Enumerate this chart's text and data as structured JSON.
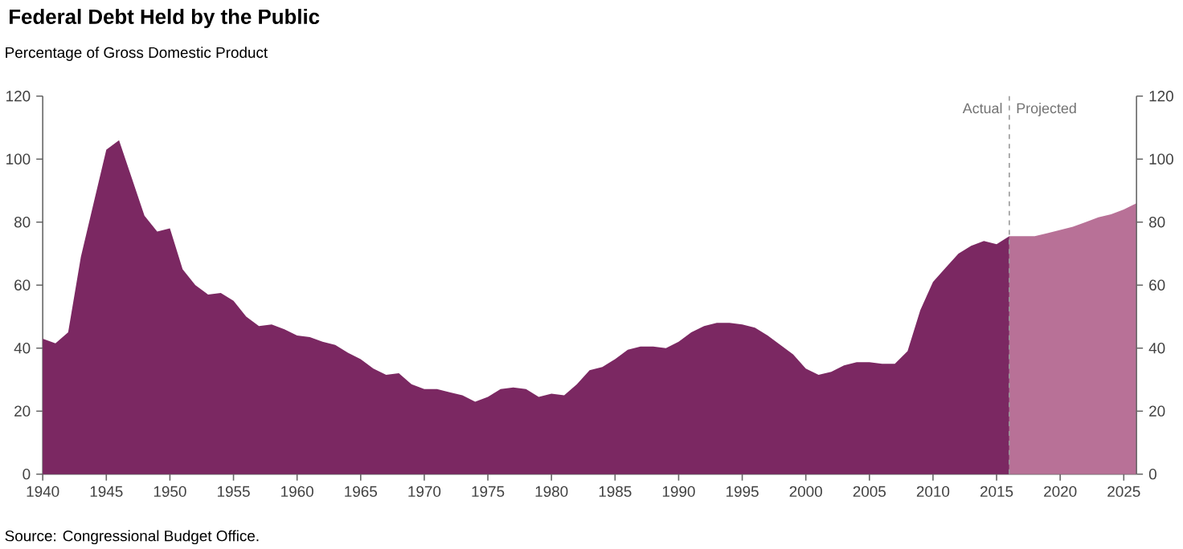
{
  "chart_data": {
    "type": "area",
    "title": "Federal Debt Held by the Public",
    "ylabel": "Percentage of Gross Domestic Product",
    "series": [
      {
        "color": "#7b2862",
        "x": [
          1940,
          1941,
          1942,
          1943,
          1944,
          1945,
          1946,
          1947,
          1948,
          1949,
          1950,
          1951,
          1952,
          1953,
          1954,
          1955,
          1956,
          1957,
          1958,
          1959,
          1960,
          1961,
          1962,
          1963,
          1964,
          1965,
          1966,
          1967,
          1968,
          1969,
          1970,
          1971,
          1972,
          1973,
          1974,
          1975,
          1976,
          1977,
          1978,
          1979,
          1980,
          1981,
          1982,
          1983,
          1984,
          1985,
          1986,
          1987,
          1988,
          1989,
          1990,
          1991,
          1992,
          1993,
          1994,
          1995,
          1996,
          1997,
          1998,
          1999,
          2000,
          2001,
          2002,
          2003,
          2004,
          2005,
          2006,
          2007,
          2008,
          2009,
          2010,
          2011,
          2012,
          2013,
          2014,
          2015,
          2016
        ],
        "values": [
          43,
          41.5,
          45,
          69,
          86,
          103,
          106,
          94,
          82,
          77,
          78,
          65,
          60,
          57,
          57.5,
          55,
          50,
          47,
          47.5,
          46,
          44,
          43.5,
          42,
          41,
          38.5,
          36.5,
          33.5,
          31.5,
          32,
          28.5,
          27,
          27,
          26,
          25,
          23,
          24.5,
          27,
          27.5,
          27,
          24.5,
          25.5,
          25,
          28.5,
          33,
          34,
          36.5,
          39.5,
          40.5,
          40.5,
          40,
          42,
          45,
          47,
          48,
          48,
          47.5,
          46.5,
          44,
          41,
          38,
          33.5,
          31.5,
          32.5,
          34.5,
          35.5,
          35.5,
          35,
          35,
          39,
          52,
          61,
          65.5,
          70,
          72.5,
          74,
          73,
          75.5
        ]
      },
      {
        "color": "#b87197",
        "x": [
          2016,
          2017,
          2018,
          2019,
          2020,
          2021,
          2022,
          2023,
          2024,
          2025,
          2026
        ],
        "values": [
          75.5,
          75.5,
          75.5,
          76.5,
          77.5,
          78.5,
          80,
          81.5,
          82.5,
          84,
          86
        ]
      }
    ],
    "xlim": [
      1940,
      2026
    ],
    "xticks": [
      1940,
      1945,
      1950,
      1955,
      1960,
      1965,
      1970,
      1975,
      1980,
      1985,
      1990,
      1995,
      2000,
      2005,
      2010,
      2015,
      2020,
      2025
    ],
    "ylim": [
      0,
      120
    ],
    "yticks": [
      0,
      20,
      40,
      60,
      80,
      100,
      120
    ],
    "y2lim": [
      0,
      120
    ],
    "y2ticks": [
      0,
      20,
      40,
      60,
      80,
      100,
      120
    ],
    "ref_lines": [
      {
        "axis": "x",
        "value": 2016,
        "color": "#999999",
        "line_style": "dashed"
      }
    ],
    "annotations": [
      {
        "text": "Actual",
        "x": 2016,
        "y": 120
      },
      {
        "text": "Projected",
        "x": 2016,
        "y": 120
      },
      "Source: Congressional Budget Office."
    ],
    "grid": false
  }
}
